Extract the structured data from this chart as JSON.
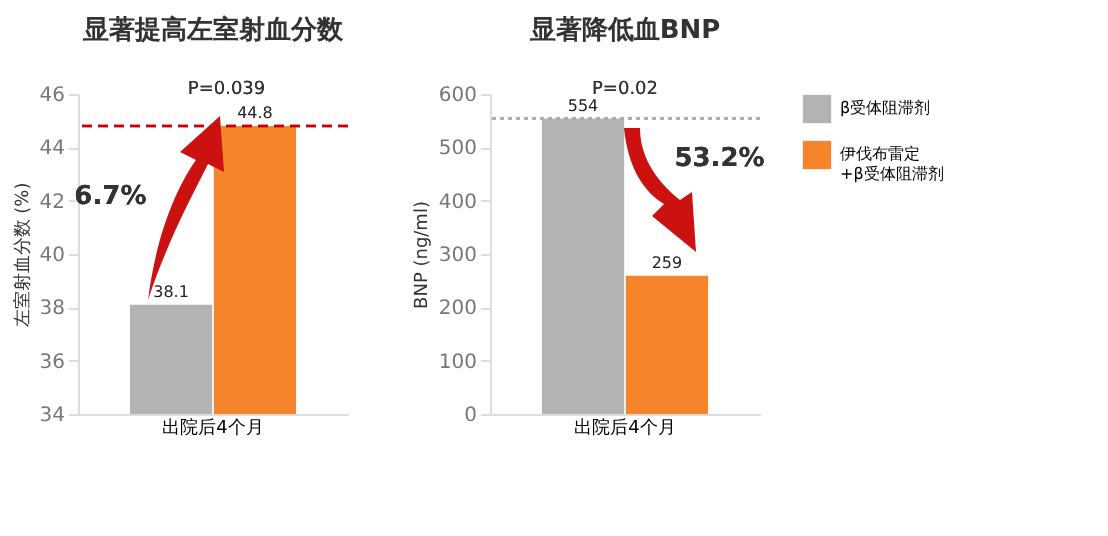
{
  "chart_data": [
    {
      "type": "bar",
      "title": "显著提高左室射血分数",
      "ylabel": "左室射血分数 (%)",
      "categories": [
        "出院后4个月"
      ],
      "series": [
        {
          "name": "β受体阻滞剂",
          "color": "#b3b3b3",
          "values": [
            38.1
          ]
        },
        {
          "name": "伊伐布雷定+β受体阻滞剂",
          "color": "#f5842a",
          "values": [
            44.8
          ]
        }
      ],
      "ylim": [
        34,
        46
      ],
      "yticks": [
        34,
        36,
        38,
        40,
        42,
        44,
        46
      ],
      "data_labels": true,
      "legend": "top right",
      "ref_lines": [
        {
          "axis": "y",
          "value": 44.8,
          "color": "#cc0000",
          "line_style": "dashed"
        }
      ],
      "annotations": [
        "P=0.039",
        "6.7%"
      ]
    },
    {
      "type": "bar",
      "title": "显著降低血BNP",
      "ylabel": "BNP (ng/ml)",
      "categories": [
        "出院后4个月"
      ],
      "series": [
        {
          "name": "β受体阻滞剂",
          "color": "#b3b3b3",
          "values": [
            554
          ]
        },
        {
          "name": "伊伐布雷定+β受体阻滞剂",
          "color": "#f5842a",
          "values": [
            259
          ]
        }
      ],
      "ylim": [
        0,
        600
      ],
      "yticks": [
        0,
        100,
        200,
        300,
        400,
        500,
        600
      ],
      "data_labels": true,
      "legend": "top right",
      "ref_lines": [
        {
          "axis": "y",
          "value": 554,
          "color": "#aaaaaa",
          "line_style": "dotted"
        }
      ],
      "annotations": [
        "P=0.02",
        "53.2%"
      ]
    }
  ]
}
